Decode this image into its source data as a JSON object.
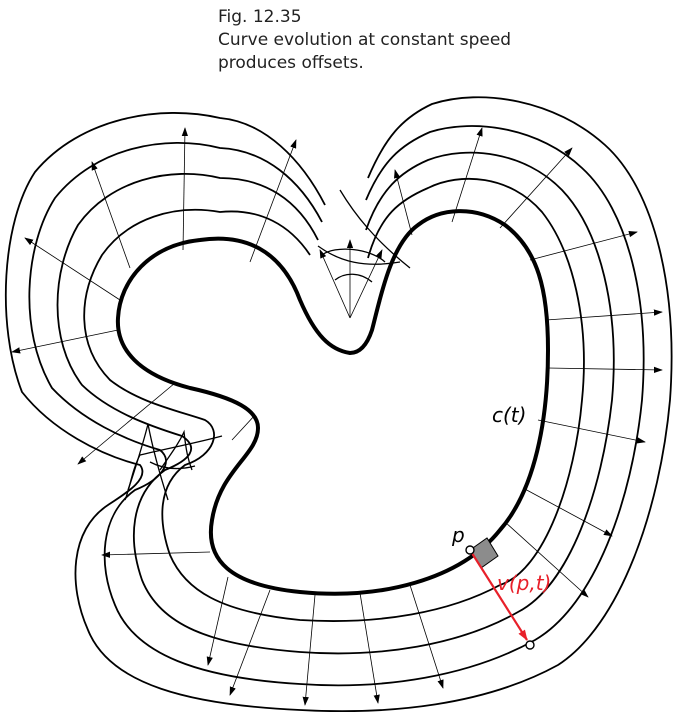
{
  "caption": {
    "figure_number": "Fig. 12.35",
    "line1": "Curve evolution at constant speed",
    "line2": "produces offsets."
  },
  "labels": {
    "curve": "c(t)",
    "point": "p",
    "velocity": "v(p,t)"
  },
  "colors": {
    "curve": "#000000",
    "velocity_arrow": "#e8202a",
    "normal_square": "#8c8c8c"
  }
}
